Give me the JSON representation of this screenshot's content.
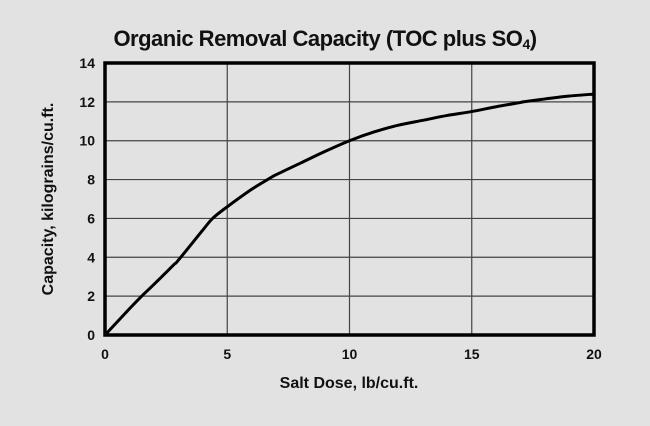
{
  "chart_data": {
    "type": "line",
    "title": "Organic Removal Capacity (TOC plus SO",
    "title_subscript": "4",
    "xlabel": "Salt Dose, lb/cu.ft.",
    "ylabel": "Capacity, kilograins/cu.ft.",
    "xlim": [
      0,
      20
    ],
    "ylim": [
      0,
      14
    ],
    "xticks": [
      0,
      5,
      10,
      15,
      20
    ],
    "yticks": [
      0,
      2,
      4,
      6,
      8,
      10,
      12,
      14
    ],
    "grid": true,
    "legend": null,
    "series": [
      {
        "name": "Organic Removal Capacity",
        "color": "#000000",
        "x": [
          0,
          1,
          1.5,
          2,
          2.8,
          3,
          4,
          4.4,
          5,
          6,
          6.65,
          7,
          8,
          9,
          10,
          11,
          12,
          13,
          14,
          15,
          16,
          17,
          17.1,
          18,
          19,
          20
        ],
        "y": [
          0,
          1.35,
          2,
          2.6,
          3.6,
          3.85,
          5.4,
          6.0,
          6.6,
          7.5,
          8.0,
          8.25,
          8.85,
          9.45,
          10.0,
          10.45,
          10.8,
          11.05,
          11.3,
          11.5,
          11.75,
          11.97,
          12.0,
          12.15,
          12.3,
          12.4
        ]
      }
    ]
  }
}
